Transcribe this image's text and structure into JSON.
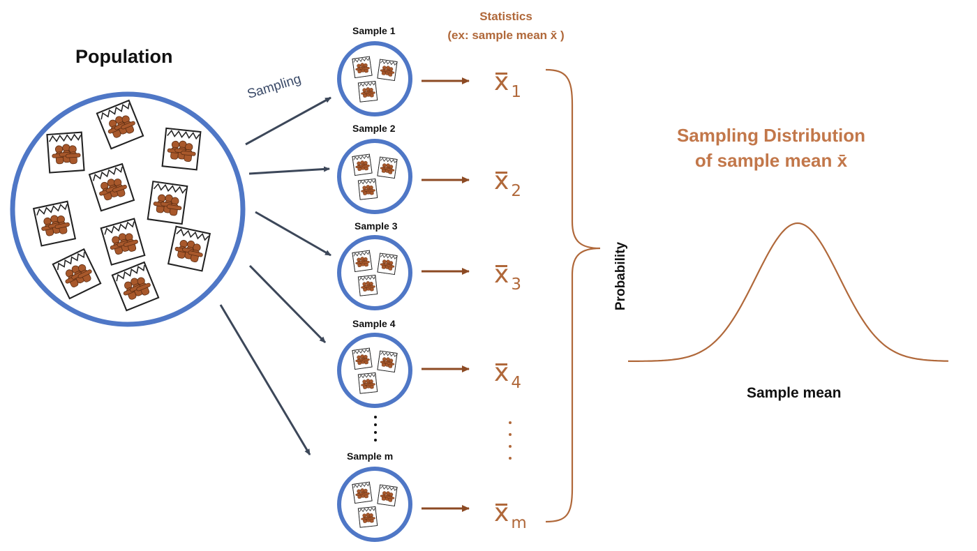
{
  "population": {
    "title": "Population"
  },
  "sampling_label": "Sampling",
  "statistics": {
    "line1": "Statistics",
    "line2": "(ex: sample mean x̄ )"
  },
  "samples": [
    {
      "label": "Sample 1",
      "stat_sub": "1"
    },
    {
      "label": "Sample 2",
      "stat_sub": "2"
    },
    {
      "label": "Sample 3",
      "stat_sub": "3"
    },
    {
      "label": "Sample 4",
      "stat_sub": "4"
    },
    {
      "label": "Sample m",
      "stat_sub": "m"
    }
  ],
  "stat_symbol": "x",
  "distribution": {
    "title_line1": "Sampling Distribution",
    "title_line2": "of sample mean x̄",
    "ylabel": "Probability",
    "xlabel": "Sample mean"
  },
  "colors": {
    "circle": "#4f77c6",
    "arrow_dark": "#3c4759",
    "arrow_brown": "#8c4a23",
    "accent": "#b0683a",
    "cookie": "#a8582b"
  }
}
